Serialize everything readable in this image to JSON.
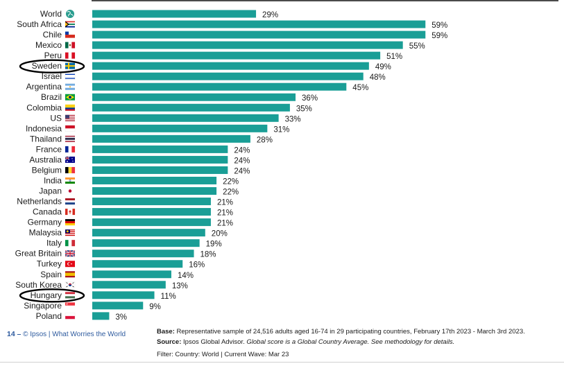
{
  "chart_data": {
    "type": "bar",
    "orientation": "horizontal",
    "categories": [
      "World",
      "South Africa",
      "Chile",
      "Mexico",
      "Peru",
      "Sweden",
      "Israel",
      "Argentina",
      "Brazil",
      "Colombia",
      "US",
      "Indonesia",
      "Thailand",
      "France",
      "Australia",
      "Belgium",
      "India",
      "Japan",
      "Netherlands",
      "Canada",
      "Germany",
      "Malaysia",
      "Italy",
      "Great Britain",
      "Turkey",
      "Spain",
      "South Korea",
      "Hungary",
      "Singapore",
      "Poland"
    ],
    "values": [
      29,
      59,
      59,
      55,
      51,
      49,
      48,
      45,
      36,
      35,
      33,
      31,
      28,
      24,
      24,
      24,
      22,
      22,
      21,
      21,
      21,
      20,
      19,
      18,
      16,
      14,
      13,
      11,
      9,
      3
    ],
    "value_suffix": "%",
    "bar_color": "#1a9e96",
    "highlighted": [
      "Sweden",
      "Hungary"
    ],
    "title": "",
    "xlabel": "",
    "ylabel": "",
    "xlim": [
      0,
      100
    ],
    "grid": false,
    "flag_icons": [
      "globe-icon",
      "south-africa-flag-icon",
      "chile-flag-icon",
      "mexico-flag-icon",
      "peru-flag-icon",
      "sweden-flag-icon",
      "israel-flag-icon",
      "argentina-flag-icon",
      "brazil-flag-icon",
      "colombia-flag-icon",
      "us-flag-icon",
      "indonesia-flag-icon",
      "thailand-flag-icon",
      "france-flag-icon",
      "australia-flag-icon",
      "belgium-flag-icon",
      "india-flag-icon",
      "japan-flag-icon",
      "netherlands-flag-icon",
      "canada-flag-icon",
      "germany-flag-icon",
      "malaysia-flag-icon",
      "italy-flag-icon",
      "great-britain-flag-icon",
      "turkey-flag-icon",
      "spain-flag-icon",
      "south-korea-flag-icon",
      "hungary-flag-icon",
      "singapore-flag-icon",
      "poland-flag-icon"
    ]
  },
  "footer": {
    "page_number": "14",
    "dash": "–",
    "brand": "© Ipsos | What Worries the World",
    "base_label": "Base:",
    "base_text": "Representative sample of 24,516 adults aged 16-74 in 29 participating countries, February 17th 2023 - March 3rd 2023.",
    "source_label": "Source:",
    "source_text": "Ipsos Global Advisor.",
    "source_note": "Global score is a Global Country Average. See methodology for details.",
    "filter_text": "Filter: Country: World | Current Wave: Mar 23"
  }
}
